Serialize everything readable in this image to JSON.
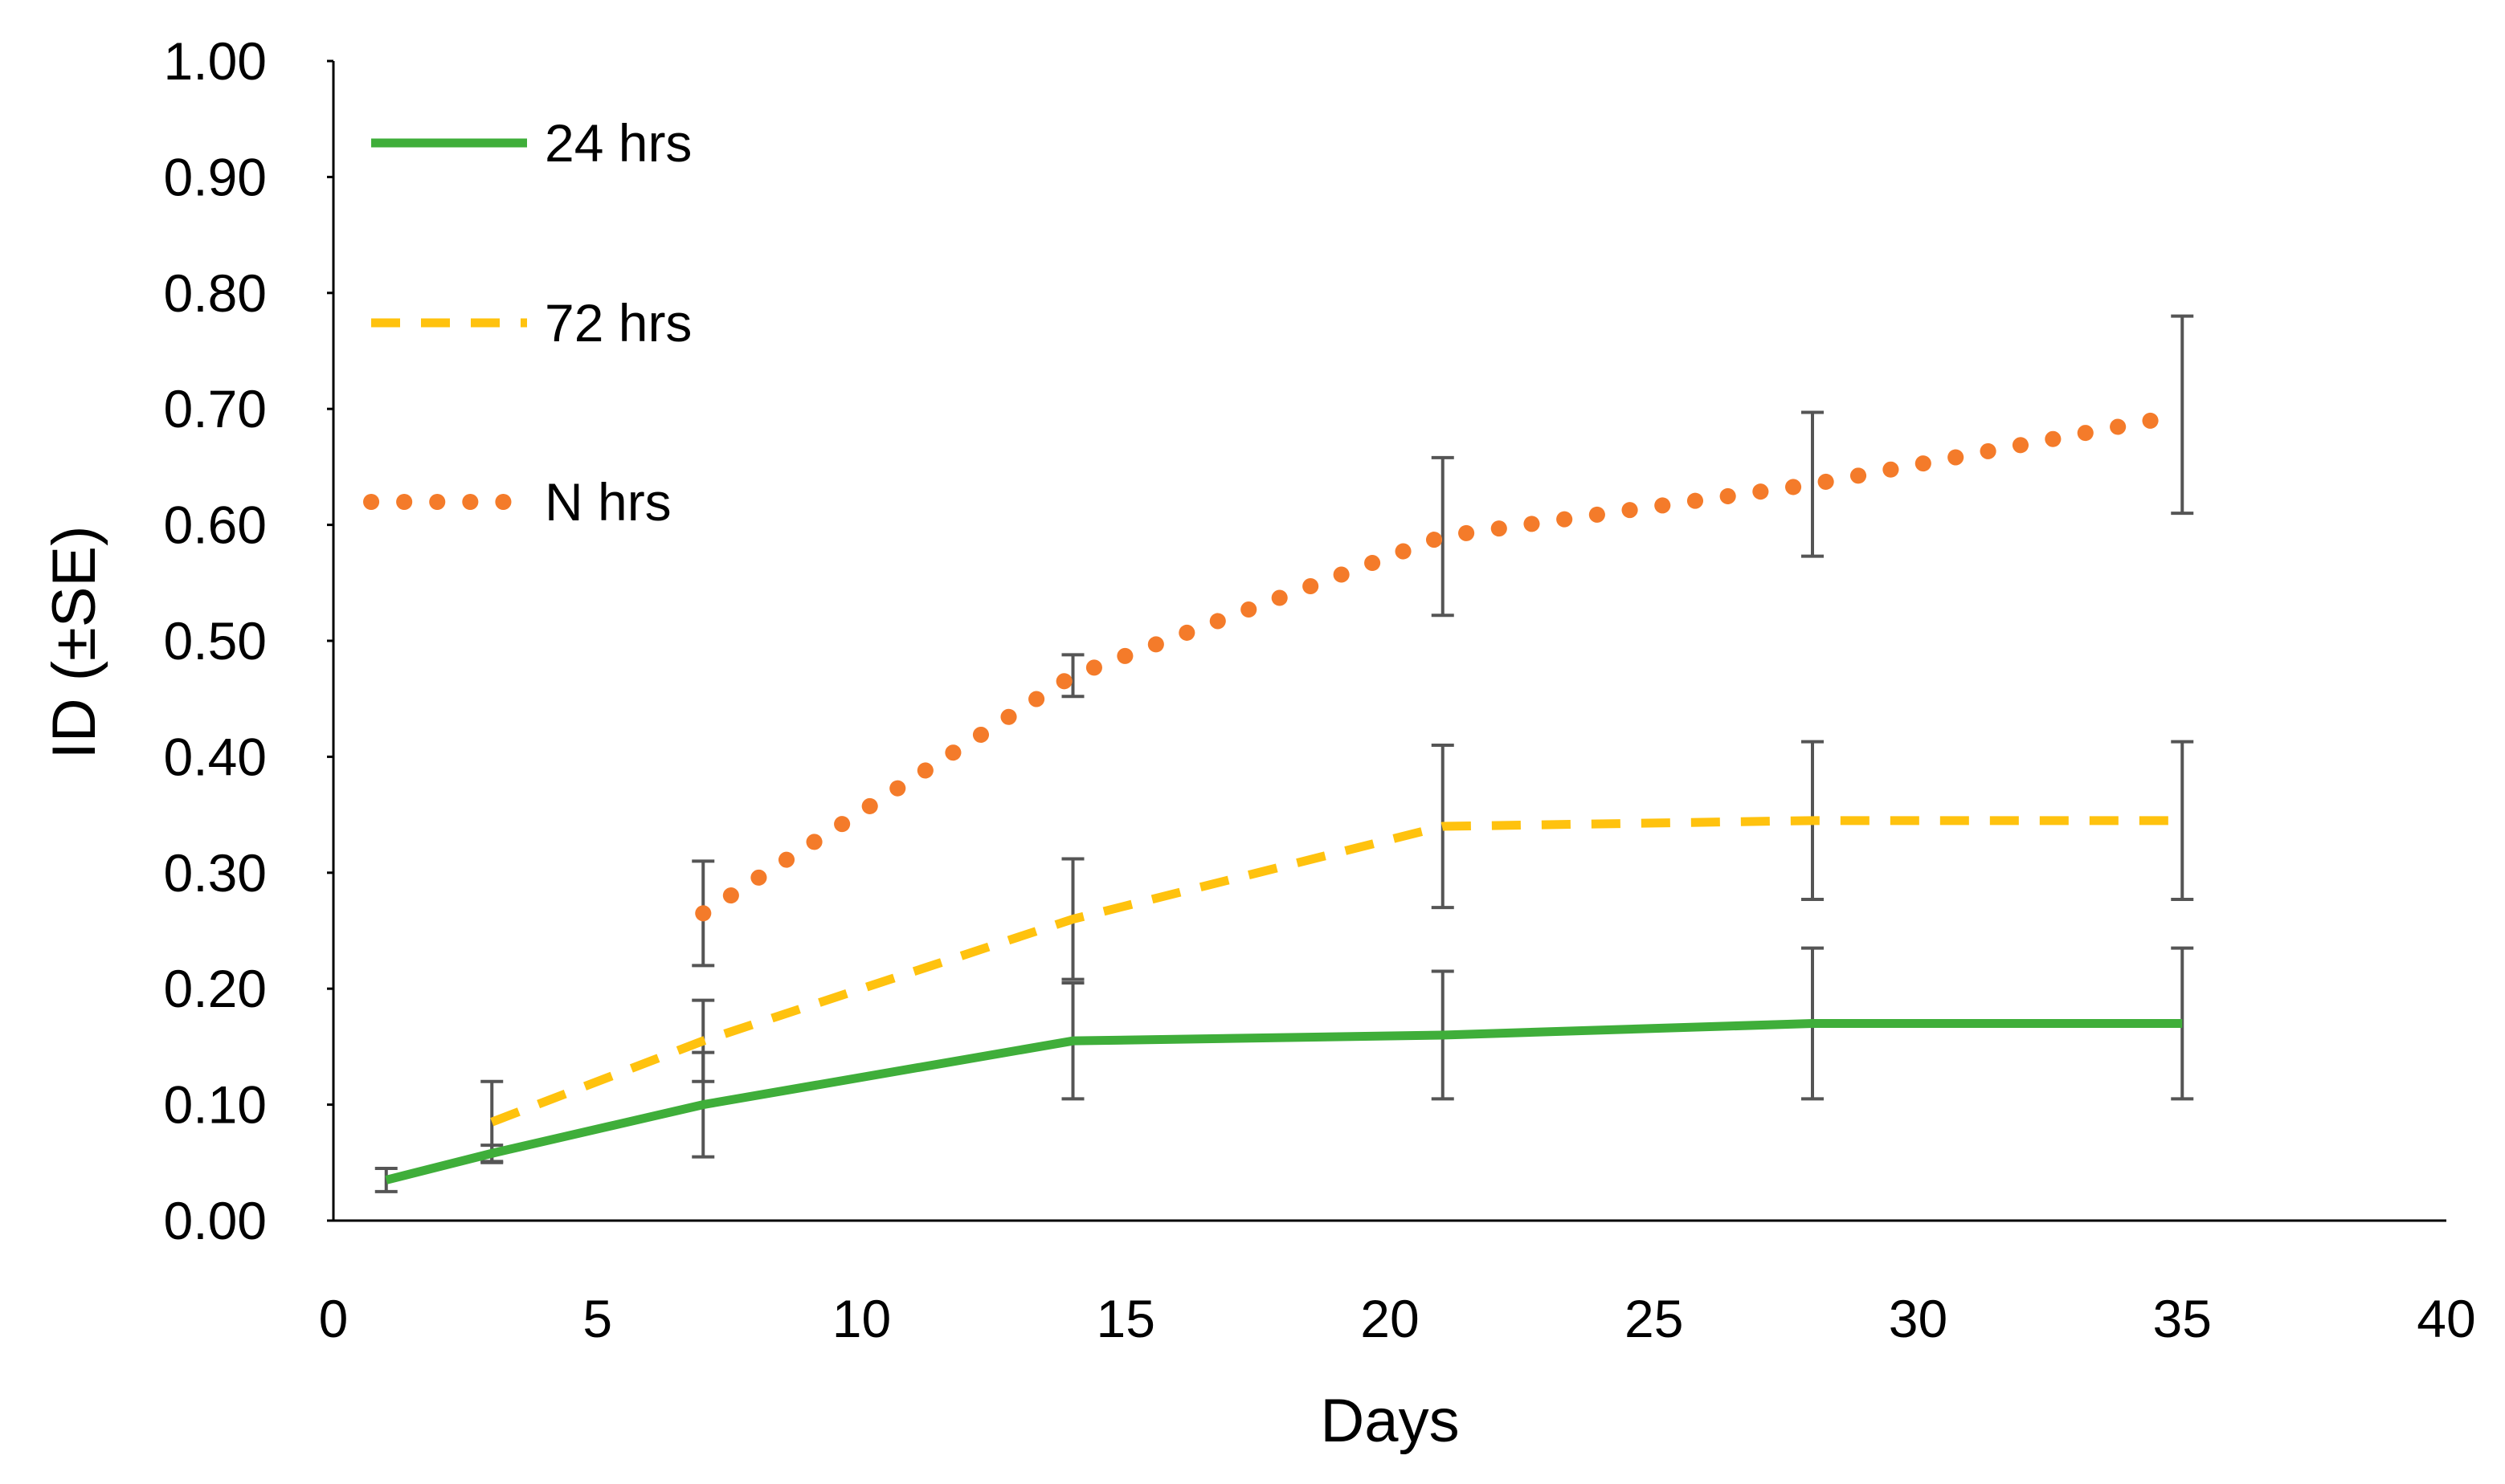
{
  "chart_data": {
    "type": "line",
    "xlabel": "Days",
    "ylabel": "ID  (±SE)",
    "xlim": [
      0,
      40
    ],
    "ylim": [
      0,
      1
    ],
    "x_ticks": [
      "0",
      "5",
      "10",
      "15",
      "20",
      "25",
      "30",
      "35",
      "40"
    ],
    "y_ticks": [
      "0.00",
      "0.10",
      "0.20",
      "0.30",
      "0.40",
      "0.50",
      "0.60",
      "0.70",
      "0.80",
      "0.90",
      "1.00"
    ],
    "grid": false,
    "legend_position": "top-left",
    "series": [
      {
        "name": "24 hrs",
        "color": "#3fae3a",
        "style": "solid",
        "points": [
          {
            "x": 1,
            "y": 0.035,
            "err": 0.01
          },
          {
            "x": 3,
            "y": 0.058,
            "err": 0.007
          },
          {
            "x": 7,
            "y": 0.1,
            "err": 0.045
          },
          {
            "x": 14,
            "y": 0.155,
            "err": 0.05
          },
          {
            "x": 21,
            "y": 0.16,
            "err": 0.055
          },
          {
            "x": 28,
            "y": 0.17,
            "err": 0.065
          },
          {
            "x": 35,
            "y": 0.17,
            "err": 0.065
          }
        ]
      },
      {
        "name": "72 hrs",
        "color": "#ffc20e",
        "style": "dashed",
        "points": [
          {
            "x": 3,
            "y": 0.085,
            "err": 0.035
          },
          {
            "x": 7,
            "y": 0.155,
            "err": 0.035
          },
          {
            "x": 14,
            "y": 0.26,
            "err": 0.052
          },
          {
            "x": 21,
            "y": 0.34,
            "err": 0.07
          },
          {
            "x": 28,
            "y": 0.345,
            "err": 0.068
          },
          {
            "x": 35,
            "y": 0.345,
            "err": 0.068
          }
        ]
      },
      {
        "name": "N hrs",
        "color": "#f47b2a",
        "style": "dotted",
        "points": [
          {
            "x": 7,
            "y": 0.265,
            "err": 0.045
          },
          {
            "x": 14,
            "y": 0.47,
            "err": 0.018
          },
          {
            "x": 21,
            "y": 0.59,
            "err": 0.068
          },
          {
            "x": 28,
            "y": 0.635,
            "err": 0.062
          },
          {
            "x": 35,
            "y": 0.695,
            "err": 0.085
          }
        ]
      }
    ]
  }
}
